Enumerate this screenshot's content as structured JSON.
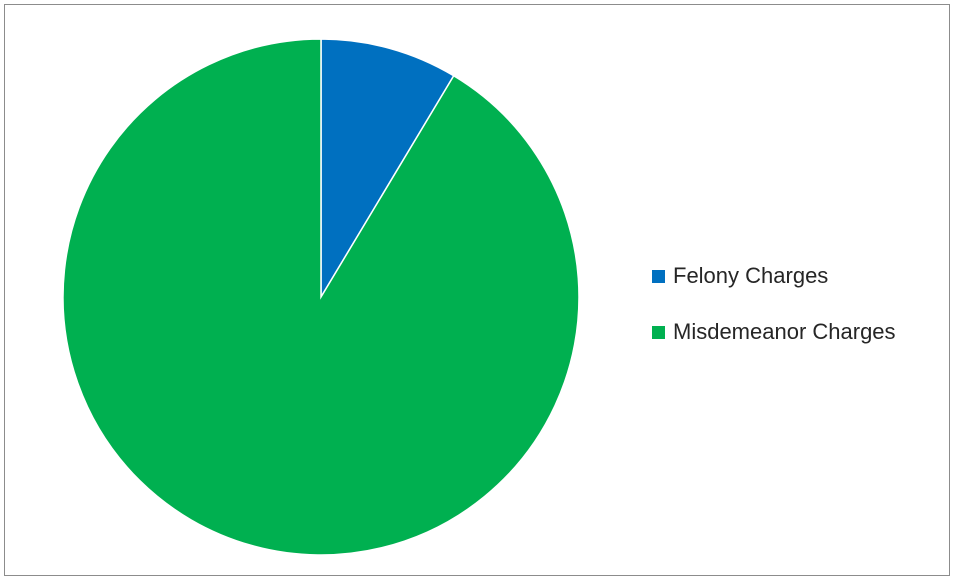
{
  "chart_data": {
    "type": "pie",
    "categories": [
      "Felony Charges",
      "Misdemeanor Charges"
    ],
    "values": [
      8.6,
      91.4
    ],
    "colors": [
      "#0070c0",
      "#00b050"
    ],
    "start_angle": "12 o'clock",
    "direction": "clockwise",
    "legend_position": "right",
    "title": ""
  }
}
